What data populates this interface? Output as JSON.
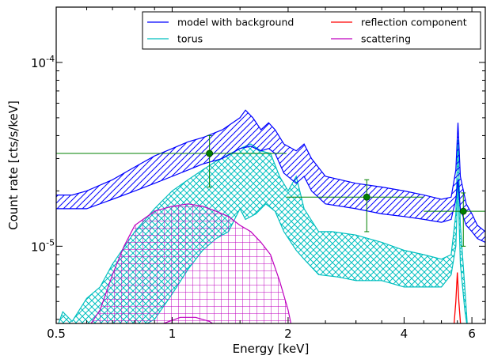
{
  "chart_data": {
    "type": "line",
    "xlabel": "Energy [keV]",
    "ylabel": "Count rate [cts/s/keV]",
    "x_scale": "log",
    "y_scale": "log",
    "xlim": [
      0.5,
      6.5
    ],
    "ylim": [
      3.8e-06,
      0.0002
    ],
    "x_ticks": [
      {
        "value": 0.5,
        "label": "0.5"
      },
      {
        "value": 1,
        "label": "1"
      },
      {
        "value": 2,
        "label": "2"
      },
      {
        "value": 4,
        "label": "4"
      },
      {
        "value": 6,
        "label": "6"
      }
    ],
    "y_ticks": [
      {
        "value": 1e-05,
        "base": "10",
        "exp": "-5"
      },
      {
        "value": 0.0001,
        "base": "10",
        "exp": "-4"
      }
    ],
    "legend": {
      "position": "top-right",
      "columns": 2,
      "entries": [
        {
          "label": "model with background",
          "color": "#0000ff"
        },
        {
          "label": "reflection component",
          "color": "#ff0000"
        },
        {
          "label": "torus",
          "color": "#00bfbf"
        },
        {
          "label": "scattering",
          "color": "#bf00bf"
        }
      ]
    },
    "series": [
      {
        "name": "model with background",
        "color": "#0000ff",
        "hatch": "diagonal",
        "upper": [
          [
            0.5,
            1.9e-05
          ],
          [
            0.55,
            1.9e-05
          ],
          [
            0.6,
            2e-05
          ],
          [
            0.7,
            2.3e-05
          ],
          [
            0.8,
            2.7e-05
          ],
          [
            0.9,
            3.1e-05
          ],
          [
            1.0,
            3.4e-05
          ],
          [
            1.1,
            3.7e-05
          ],
          [
            1.2,
            3.9e-05
          ],
          [
            1.35,
            4.3e-05
          ],
          [
            1.5,
            5e-05
          ],
          [
            1.55,
            5.5e-05
          ],
          [
            1.62,
            5e-05
          ],
          [
            1.7,
            4.3e-05
          ],
          [
            1.78,
            4.7e-05
          ],
          [
            1.85,
            4.3e-05
          ],
          [
            1.95,
            3.6e-05
          ],
          [
            2.1,
            3.3e-05
          ],
          [
            2.2,
            3.6e-05
          ],
          [
            2.3,
            3e-05
          ],
          [
            2.5,
            2.4e-05
          ],
          [
            3.0,
            2.2e-05
          ],
          [
            3.5,
            2.1e-05
          ],
          [
            4.0,
            2e-05
          ],
          [
            4.5,
            1.9e-05
          ],
          [
            5.0,
            1.8e-05
          ],
          [
            5.3,
            1.85e-05
          ],
          [
            5.45,
            2.6e-05
          ],
          [
            5.52,
            4.7e-05
          ],
          [
            5.6,
            2.4e-05
          ],
          [
            5.8,
            1.7e-05
          ],
          [
            6.0,
            1.5e-05
          ],
          [
            6.2,
            1.3e-05
          ],
          [
            6.5,
            1.2e-05
          ]
        ],
        "lower": [
          [
            0.5,
            1.6e-05
          ],
          [
            0.6,
            1.6e-05
          ],
          [
            0.7,
            1.8e-05
          ],
          [
            0.8,
            2e-05
          ],
          [
            0.9,
            2.2e-05
          ],
          [
            1.0,
            2.4e-05
          ],
          [
            1.1,
            2.6e-05
          ],
          [
            1.2,
            2.8e-05
          ],
          [
            1.35,
            3e-05
          ],
          [
            1.5,
            3.4e-05
          ],
          [
            1.6,
            3.5e-05
          ],
          [
            1.7,
            3.3e-05
          ],
          [
            1.78,
            3.4e-05
          ],
          [
            1.85,
            3.2e-05
          ],
          [
            1.95,
            2.5e-05
          ],
          [
            2.1,
            2.2e-05
          ],
          [
            2.2,
            2.4e-05
          ],
          [
            2.3,
            2e-05
          ],
          [
            2.5,
            1.7e-05
          ],
          [
            3.0,
            1.6e-05
          ],
          [
            3.5,
            1.5e-05
          ],
          [
            4.0,
            1.45e-05
          ],
          [
            4.5,
            1.4e-05
          ],
          [
            5.0,
            1.35e-05
          ],
          [
            5.3,
            1.4e-05
          ],
          [
            5.45,
            1.8e-05
          ],
          [
            5.52,
            2.3e-05
          ],
          [
            5.6,
            1.6e-05
          ],
          [
            5.8,
            1.3e-05
          ],
          [
            6.0,
            1.2e-05
          ],
          [
            6.2,
            1.1e-05
          ],
          [
            6.5,
            1.05e-05
          ]
        ]
      },
      {
        "name": "torus",
        "color": "#00bfbf",
        "hatch": "cross-diagonal",
        "upper": [
          [
            0.5,
            3.5e-06
          ],
          [
            0.52,
            4.4e-06
          ],
          [
            0.55,
            3.9e-06
          ],
          [
            0.6,
            5.2e-06
          ],
          [
            0.65,
            6e-06
          ],
          [
            0.7,
            8e-06
          ],
          [
            0.8,
            1.2e-05
          ],
          [
            0.9,
            1.6e-05
          ],
          [
            1.0,
            2e-05
          ],
          [
            1.1,
            2.3e-05
          ],
          [
            1.2,
            2.6e-05
          ],
          [
            1.3,
            2.9e-05
          ],
          [
            1.5,
            3.4e-05
          ],
          [
            1.6,
            3.6e-05
          ],
          [
            1.7,
            3.3e-05
          ],
          [
            1.8,
            3.2e-05
          ],
          [
            1.9,
            2.4e-05
          ],
          [
            2.0,
            2e-05
          ],
          [
            2.1,
            2.4e-05
          ],
          [
            2.2,
            1.6e-05
          ],
          [
            2.4,
            1.2e-05
          ],
          [
            2.6,
            1.2e-05
          ],
          [
            3.0,
            1.15e-05
          ],
          [
            3.5,
            1.05e-05
          ],
          [
            4.0,
            9.5e-06
          ],
          [
            4.5,
            9e-06
          ],
          [
            5.0,
            8.5e-06
          ],
          [
            5.3,
            9e-06
          ],
          [
            5.45,
            1.5e-05
          ],
          [
            5.52,
            3.8e-05
          ],
          [
            5.6,
            1.3e-05
          ],
          [
            5.75,
            6e-06
          ],
          [
            5.85,
            3.5e-06
          ]
        ],
        "lower": [
          [
            0.5,
            3.5e-06
          ],
          [
            0.6,
            3.5e-06
          ],
          [
            0.7,
            3.5e-06
          ],
          [
            0.8,
            3.5e-06
          ],
          [
            0.9,
            4e-06
          ],
          [
            1.0,
            5.5e-06
          ],
          [
            1.1,
            7.5e-06
          ],
          [
            1.2,
            9.5e-06
          ],
          [
            1.3,
            1.1e-05
          ],
          [
            1.4,
            1.2e-05
          ],
          [
            1.5,
            1.6e-05
          ],
          [
            1.55,
            1.4e-05
          ],
          [
            1.65,
            1.5e-05
          ],
          [
            1.75,
            1.7e-05
          ],
          [
            1.85,
            1.55e-05
          ],
          [
            1.95,
            1.2e-05
          ],
          [
            2.1,
            9.5e-06
          ],
          [
            2.2,
            8.5e-06
          ],
          [
            2.4,
            7e-06
          ],
          [
            2.7,
            6.8e-06
          ],
          [
            3.0,
            6.5e-06
          ],
          [
            3.5,
            6.5e-06
          ],
          [
            4.0,
            6e-06
          ],
          [
            4.5,
            6e-06
          ],
          [
            5.0,
            6e-06
          ],
          [
            5.3,
            7e-06
          ],
          [
            5.45,
            1e-05
          ],
          [
            5.52,
            2.2e-05
          ],
          [
            5.6,
            8e-06
          ],
          [
            5.75,
            4.5e-06
          ],
          [
            5.85,
            3.5e-06
          ]
        ]
      },
      {
        "name": "scattering",
        "color": "#bf00bf",
        "hatch": "grid",
        "upper": [
          [
            0.6,
            3.5e-06
          ],
          [
            0.65,
            4.5e-06
          ],
          [
            0.7,
            7e-06
          ],
          [
            0.75,
            1e-05
          ],
          [
            0.8,
            1.3e-05
          ],
          [
            0.9,
            1.55e-05
          ],
          [
            1.0,
            1.65e-05
          ],
          [
            1.1,
            1.7e-05
          ],
          [
            1.2,
            1.65e-05
          ],
          [
            1.3,
            1.55e-05
          ],
          [
            1.4,
            1.45e-05
          ],
          [
            1.5,
            1.3e-05
          ],
          [
            1.6,
            1.2e-05
          ],
          [
            1.7,
            1.05e-05
          ],
          [
            1.8,
            9e-06
          ],
          [
            1.9,
            6.5e-06
          ],
          [
            2.0,
            4.5e-06
          ],
          [
            2.05,
            3.5e-06
          ]
        ],
        "lower": [
          [
            0.85,
            3.5e-06
          ],
          [
            0.95,
            3.8e-06
          ],
          [
            1.05,
            4.1e-06
          ],
          [
            1.15,
            4.1e-06
          ],
          [
            1.25,
            3.9e-06
          ],
          [
            1.35,
            3.5e-06
          ]
        ]
      },
      {
        "name": "reflection component",
        "color": "#ff0000",
        "line": [
          [
            5.38,
            3.5e-06
          ],
          [
            5.45,
            5e-06
          ],
          [
            5.5,
            7.2e-06
          ],
          [
            5.55,
            5e-06
          ],
          [
            5.62,
            3.5e-06
          ]
        ]
      }
    ],
    "data_points": {
      "color": "#008000",
      "points": [
        {
          "x": 1.25,
          "y": 3.2e-05,
          "xerr": [
            0.5,
            1.98
          ],
          "yerr": [
            2.1e-05,
            4e-05
          ]
        },
        {
          "x": 3.2,
          "y": 1.85e-05,
          "xerr": [
            1.98,
            4.5
          ],
          "yerr": [
            1.2e-05,
            2.3e-05
          ]
        },
        {
          "x": 5.7,
          "y": 1.55e-05,
          "xerr": [
            4.5,
            6.5
          ],
          "yerr": [
            1e-05,
            1.95e-05
          ]
        }
      ]
    },
    "grid": false
  }
}
